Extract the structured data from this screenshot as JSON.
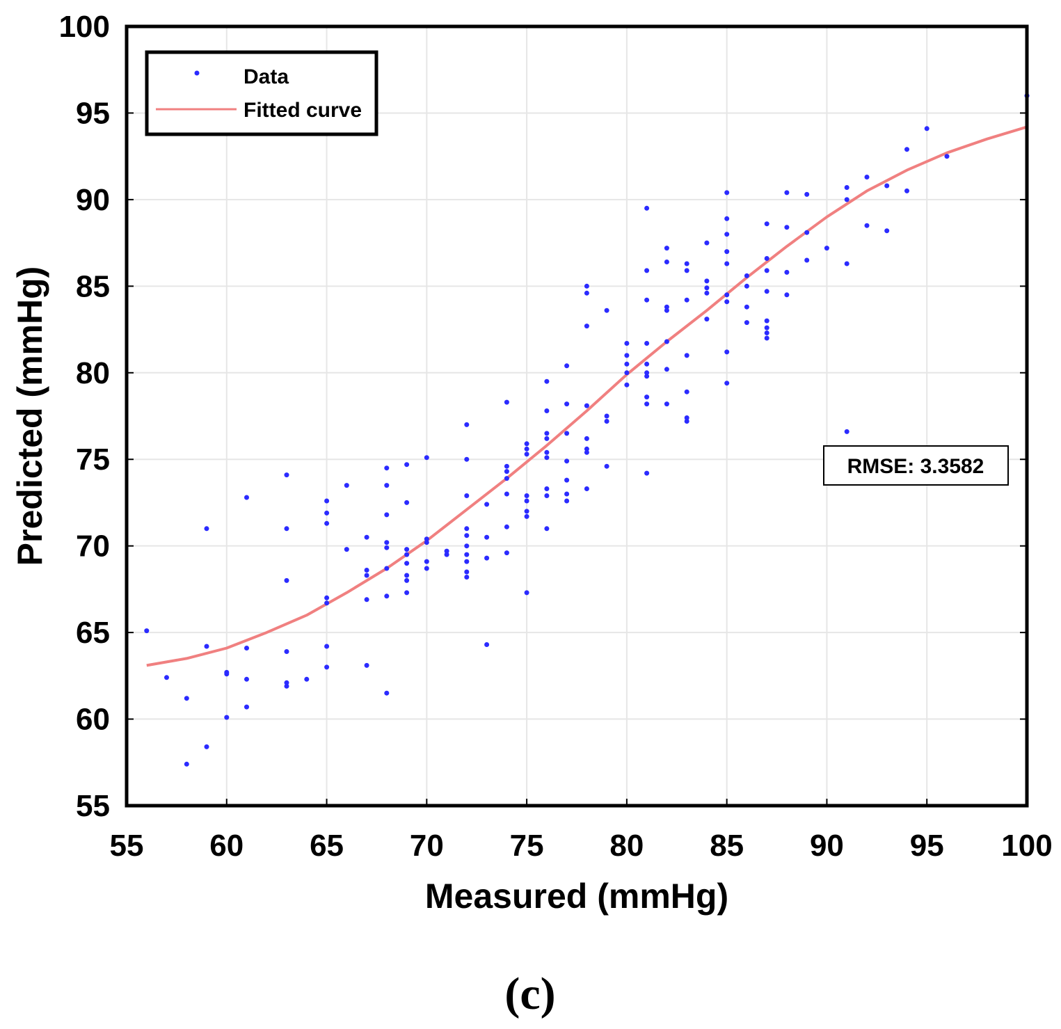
{
  "chart_data": {
    "type": "scatter",
    "xlabel": "Measured (mmHg)",
    "ylabel": "Predicted (mmHg)",
    "xlim": [
      55,
      100
    ],
    "ylim": [
      55,
      100
    ],
    "grid": true,
    "x_ticks": [
      "55",
      "60",
      "65",
      "70",
      "75",
      "80",
      "85",
      "90",
      "95",
      "100"
    ],
    "y_ticks": [
      "55",
      "60",
      "65",
      "70",
      "75",
      "80",
      "85",
      "90",
      "95",
      "100"
    ],
    "legend": {
      "position": "top-left",
      "entries": [
        {
          "label": "Data",
          "marker": "dot",
          "color": "#2b2bff"
        },
        {
          "label": "Fitted curve",
          "marker": "line",
          "color": "#f08080"
        }
      ]
    },
    "annotation": "RMSE: 3.3582",
    "caption": "(c)",
    "series": [
      {
        "name": "Data",
        "color": "#2b2bff",
        "points": [
          [
            56,
            65.1
          ],
          [
            57,
            62.4
          ],
          [
            58,
            61.2
          ],
          [
            58,
            57.4
          ],
          [
            59,
            71.0
          ],
          [
            59,
            64.2
          ],
          [
            59,
            58.4
          ],
          [
            60,
            62.7
          ],
          [
            60,
            62.6
          ],
          [
            60,
            60.1
          ],
          [
            61,
            72.8
          ],
          [
            61,
            64.1
          ],
          [
            61,
            62.3
          ],
          [
            61,
            60.7
          ],
          [
            63,
            74.1
          ],
          [
            63,
            71.0
          ],
          [
            63,
            68.0
          ],
          [
            63,
            63.9
          ],
          [
            63,
            62.1
          ],
          [
            63,
            61.9
          ],
          [
            64,
            62.3
          ],
          [
            65,
            72.6
          ],
          [
            65,
            71.9
          ],
          [
            65,
            71.3
          ],
          [
            65,
            67.0
          ],
          [
            65,
            66.7
          ],
          [
            65,
            64.2
          ],
          [
            65,
            63.0
          ],
          [
            66,
            73.5
          ],
          [
            66,
            69.8
          ],
          [
            67,
            70.5
          ],
          [
            67,
            68.6
          ],
          [
            67,
            68.3
          ],
          [
            67,
            66.9
          ],
          [
            67,
            63.1
          ],
          [
            68,
            74.5
          ],
          [
            68,
            73.5
          ],
          [
            68,
            71.8
          ],
          [
            68,
            70.2
          ],
          [
            68,
            69.9
          ],
          [
            68,
            68.7
          ],
          [
            68,
            67.1
          ],
          [
            68,
            61.5
          ],
          [
            69,
            74.7
          ],
          [
            69,
            72.5
          ],
          [
            69,
            69.8
          ],
          [
            69,
            69.5
          ],
          [
            69,
            69.0
          ],
          [
            69,
            68.3
          ],
          [
            69,
            68.0
          ],
          [
            69,
            67.3
          ],
          [
            70,
            75.1
          ],
          [
            70,
            70.4
          ],
          [
            70,
            70.2
          ],
          [
            70,
            69.1
          ],
          [
            70,
            68.7
          ],
          [
            71,
            69.7
          ],
          [
            71,
            69.5
          ],
          [
            72,
            77.0
          ],
          [
            72,
            75.0
          ],
          [
            72,
            72.9
          ],
          [
            72,
            71.0
          ],
          [
            72,
            70.6
          ],
          [
            72,
            70.0
          ],
          [
            72,
            69.5
          ],
          [
            72,
            69.1
          ],
          [
            72,
            68.5
          ],
          [
            72,
            68.2
          ],
          [
            73,
            72.4
          ],
          [
            73,
            70.5
          ],
          [
            73,
            69.3
          ],
          [
            73,
            64.3
          ],
          [
            74,
            78.3
          ],
          [
            74,
            74.6
          ],
          [
            74,
            74.3
          ],
          [
            74,
            73.9
          ],
          [
            74,
            73.0
          ],
          [
            74,
            71.1
          ],
          [
            74,
            69.6
          ],
          [
            75,
            75.9
          ],
          [
            75,
            75.6
          ],
          [
            75,
            75.3
          ],
          [
            75,
            72.9
          ],
          [
            75,
            72.6
          ],
          [
            75,
            72.0
          ],
          [
            75,
            71.7
          ],
          [
            75,
            67.3
          ],
          [
            76,
            79.5
          ],
          [
            76,
            77.8
          ],
          [
            76,
            76.5
          ],
          [
            76,
            76.2
          ],
          [
            76,
            75.4
          ],
          [
            76,
            75.1
          ],
          [
            76,
            73.3
          ],
          [
            76,
            72.9
          ],
          [
            76,
            71.0
          ],
          [
            77,
            80.4
          ],
          [
            77,
            78.2
          ],
          [
            77,
            76.5
          ],
          [
            77,
            74.9
          ],
          [
            77,
            73.8
          ],
          [
            77,
            73.0
          ],
          [
            77,
            72.6
          ],
          [
            78,
            85.0
          ],
          [
            78,
            84.6
          ],
          [
            78,
            82.7
          ],
          [
            78,
            78.1
          ],
          [
            78,
            76.2
          ],
          [
            78,
            75.6
          ],
          [
            78,
            75.4
          ],
          [
            78,
            73.3
          ],
          [
            79,
            83.6
          ],
          [
            79,
            77.5
          ],
          [
            79,
            77.2
          ],
          [
            79,
            74.6
          ],
          [
            80,
            81.7
          ],
          [
            80,
            81.0
          ],
          [
            80,
            80.5
          ],
          [
            80,
            80.0
          ],
          [
            80,
            79.3
          ],
          [
            81,
            89.5
          ],
          [
            81,
            85.9
          ],
          [
            81,
            84.2
          ],
          [
            81,
            81.7
          ],
          [
            81,
            80.5
          ],
          [
            81,
            80.0
          ],
          [
            81,
            79.8
          ],
          [
            81,
            78.6
          ],
          [
            81,
            78.2
          ],
          [
            81,
            74.2
          ],
          [
            82,
            87.2
          ],
          [
            82,
            86.4
          ],
          [
            82,
            83.8
          ],
          [
            82,
            83.6
          ],
          [
            82,
            81.8
          ],
          [
            82,
            80.2
          ],
          [
            82,
            78.2
          ],
          [
            83,
            86.3
          ],
          [
            83,
            85.9
          ],
          [
            83,
            84.2
          ],
          [
            83,
            81.0
          ],
          [
            83,
            78.9
          ],
          [
            83,
            77.4
          ],
          [
            83,
            77.2
          ],
          [
            84,
            87.5
          ],
          [
            84,
            85.3
          ],
          [
            84,
            84.9
          ],
          [
            84,
            84.6
          ],
          [
            84,
            83.1
          ],
          [
            85,
            90.4
          ],
          [
            85,
            88.9
          ],
          [
            85,
            88.0
          ],
          [
            85,
            87.0
          ],
          [
            85,
            86.3
          ],
          [
            85,
            84.5
          ],
          [
            85,
            84.1
          ],
          [
            85,
            81.2
          ],
          [
            85,
            79.4
          ],
          [
            86,
            85.6
          ],
          [
            86,
            85.0
          ],
          [
            86,
            83.8
          ],
          [
            86,
            82.9
          ],
          [
            87,
            88.6
          ],
          [
            87,
            86.6
          ],
          [
            87,
            85.9
          ],
          [
            87,
            84.7
          ],
          [
            87,
            83.0
          ],
          [
            87,
            82.6
          ],
          [
            87,
            82.3
          ],
          [
            87,
            82.0
          ],
          [
            88,
            90.4
          ],
          [
            88,
            88.4
          ],
          [
            88,
            85.8
          ],
          [
            88,
            84.5
          ],
          [
            89,
            90.3
          ],
          [
            89,
            88.1
          ],
          [
            89,
            86.5
          ],
          [
            90,
            87.2
          ],
          [
            91,
            90.7
          ],
          [
            91,
            90.0
          ],
          [
            91,
            86.3
          ],
          [
            91,
            76.6
          ],
          [
            92,
            91.3
          ],
          [
            92,
            88.5
          ],
          [
            93,
            90.8
          ],
          [
            93,
            88.2
          ],
          [
            94,
            92.9
          ],
          [
            94,
            90.5
          ],
          [
            95,
            94.1
          ],
          [
            96,
            92.5
          ],
          [
            100,
            96.0
          ]
        ]
      },
      {
        "name": "Fitted curve",
        "color": "#f08080",
        "x": [
          56,
          58,
          60,
          62,
          64,
          66,
          68,
          70,
          72,
          74,
          76,
          78,
          80,
          82,
          84,
          86,
          88,
          90,
          92,
          94,
          96,
          98,
          100
        ],
        "y": [
          63.1,
          63.5,
          64.1,
          65.0,
          66.0,
          67.3,
          68.7,
          70.3,
          72.1,
          73.9,
          75.8,
          77.8,
          79.9,
          81.8,
          83.6,
          85.5,
          87.3,
          89.0,
          90.5,
          91.7,
          92.7,
          93.5,
          94.2
        ]
      }
    ]
  }
}
